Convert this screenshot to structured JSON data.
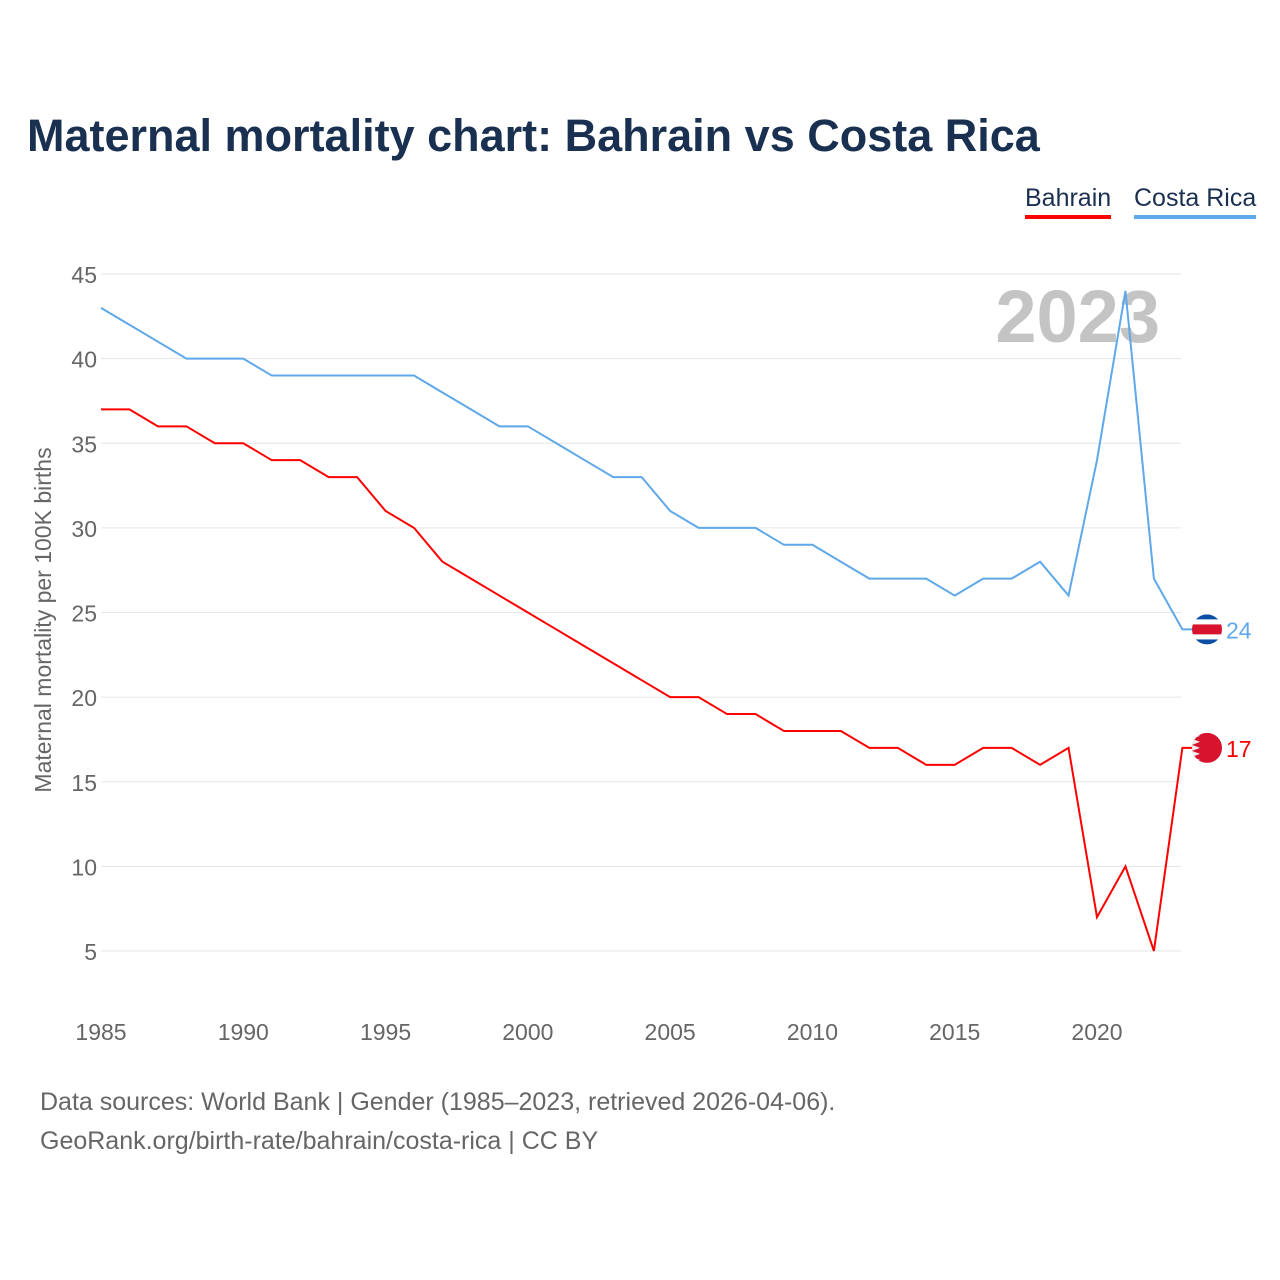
{
  "title": "Maternal mortality chart: Bahrain vs Costa Rica",
  "footer": {
    "line1": "Data sources: World Bank | Gender (1985–2023, retrieved 2026-04-06).",
    "line2": "GeoRank.org/birth-rate/bahrain/costa-rica | CC BY"
  },
  "chart_data": {
    "type": "line",
    "title": "Maternal mortality chart: Bahrain vs Costa Rica",
    "ylabel": "Maternal mortality per 100K births",
    "xlabel": "",
    "year_label": "2023",
    "ylim": [
      2,
      45
    ],
    "xlim": [
      1985,
      2023
    ],
    "yticks": [
      5,
      10,
      15,
      20,
      25,
      30,
      35,
      40,
      45
    ],
    "xticks": [
      1985,
      1990,
      1995,
      2000,
      2005,
      2010,
      2015,
      2020
    ],
    "x": [
      1985,
      1986,
      1987,
      1988,
      1989,
      1990,
      1991,
      1992,
      1993,
      1994,
      1995,
      1996,
      1997,
      1998,
      1999,
      2000,
      2001,
      2002,
      2003,
      2004,
      2005,
      2006,
      2007,
      2008,
      2009,
      2010,
      2011,
      2012,
      2013,
      2014,
      2015,
      2016,
      2017,
      2018,
      2019,
      2020,
      2021,
      2022,
      2023
    ],
    "series": [
      {
        "name": "Bahrain",
        "color": "#ff0000",
        "end_label": "17",
        "values": [
          37,
          37,
          36,
          36,
          35,
          35,
          34,
          34,
          33,
          33,
          31,
          30,
          28,
          27,
          26,
          25,
          24,
          23,
          22,
          21,
          20,
          20,
          19,
          19,
          18,
          18,
          18,
          17,
          17,
          16,
          16,
          17,
          17,
          16,
          17,
          7,
          10,
          5,
          17
        ]
      },
      {
        "name": "Costa Rica",
        "color": "#5fa8ea",
        "end_label": "24",
        "values": [
          43,
          42,
          41,
          40,
          40,
          40,
          39,
          39,
          39,
          39,
          39,
          39,
          38,
          37,
          36,
          36,
          35,
          34,
          33,
          33,
          31,
          30,
          30,
          30,
          29,
          29,
          28,
          27,
          27,
          27,
          26,
          27,
          27,
          28,
          26,
          34,
          44,
          27,
          24
        ]
      }
    ],
    "legend": "top-right",
    "grid": true
  }
}
